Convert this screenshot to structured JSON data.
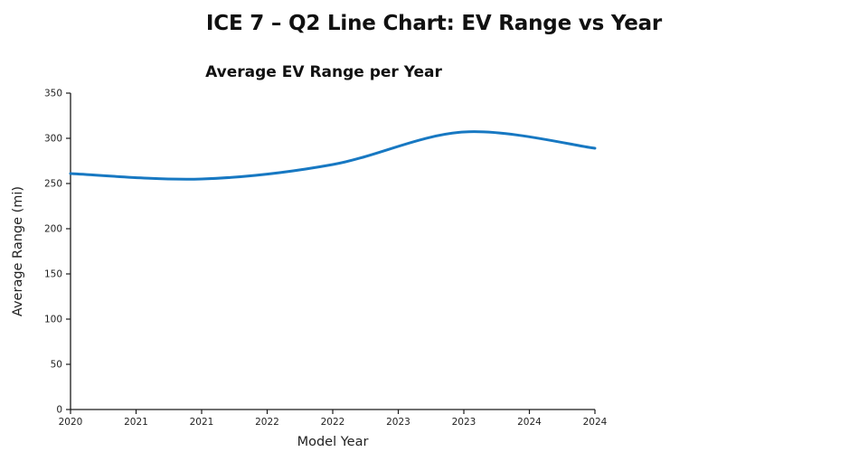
{
  "page": {
    "title": "ICE 7 – Q2 Line Chart: EV Range vs Year"
  },
  "chart_data": {
    "type": "line",
    "title": "Average EV Range per Year",
    "xlabel": "Model Year",
    "ylabel": "Average Range (mi)",
    "x": [
      2020,
      2021,
      2022,
      2023,
      2024
    ],
    "values": [
      261,
      255,
      271,
      307,
      289
    ],
    "series_name": "Average EV Range",
    "x_tick_positions": [
      2020,
      2020.5,
      2021,
      2021.5,
      2022,
      2022.5,
      2023,
      2023.5,
      2024
    ],
    "x_tick_labels": [
      "2020",
      "2021",
      "2021",
      "2022",
      "2022",
      "2023",
      "2023",
      "2024",
      "2024"
    ],
    "y_ticks": [
      0,
      50,
      100,
      150,
      200,
      250,
      300,
      350
    ],
    "xlim": [
      2020,
      2024
    ],
    "ylim": [
      0,
      350
    ],
    "grid": false,
    "legend": false,
    "smooth": true,
    "line_color": "#1778c2",
    "line_width": 3,
    "axis_color": "#1a1a1a"
  }
}
